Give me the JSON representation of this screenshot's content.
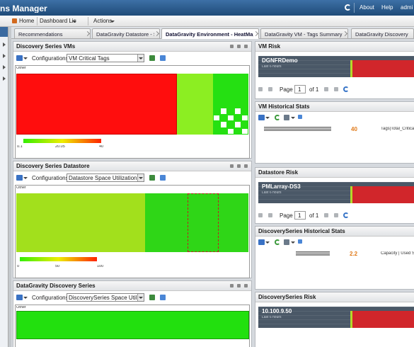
{
  "header": {
    "title": "ns Manager",
    "links": [
      "About",
      "Help",
      "admi"
    ]
  },
  "toolbar": {
    "home": "Home",
    "dashboard_list": "Dashboard List",
    "actions": "Actions"
  },
  "tabs": [
    "Recommendations",
    "DataGravity Datastore - Summary",
    "DataGravity Environment - HeatMaps",
    "DataGravity VM - Tags Summary",
    "DataGravity Discovery Seri"
  ],
  "left_panels": [
    {
      "title": "Discovery Series VMs",
      "config_label": "Configurations:",
      "config_value": "VM Critical Tags",
      "heatmap_label": "Other",
      "legend_ticks": [
        "0.1",
        "20.05",
        "40"
      ]
    },
    {
      "title": "Discovery Series Datastore",
      "config_label": "Configurations:",
      "config_value": "Datastore Space Utilization",
      "heatmap_label": "Other",
      "legend_ticks": [
        "0",
        "50",
        "100"
      ]
    },
    {
      "title": "DataGravity Discovery Series",
      "config_label": "Configurations:",
      "config_value": "DiscoverySeries Space Utilizati",
      "heatmap_label": "Other"
    }
  ],
  "right_panels": [
    {
      "title": "VM Risk",
      "chart": {
        "name": "DGNFRDemo",
        "period": "Last 6 hours"
      },
      "pager": {
        "label": "Page",
        "page": "1",
        "total": "of 1"
      }
    },
    {
      "title": "VM Historical Stats",
      "stat": {
        "value": "40",
        "metric": "Tags|Total_Critical"
      }
    },
    {
      "title": "Datastore Risk",
      "chart": {
        "name": "PMLarray-DS3",
        "period": "Last 6 hours"
      },
      "pager": {
        "label": "Page",
        "page": "1",
        "total": "of 1"
      }
    },
    {
      "title": "DiscoverySeries Historical Stats",
      "stat": {
        "value": "2.2",
        "metric": "Capacity | Used Sp"
      }
    },
    {
      "title": "DiscoverySeries Risk",
      "chart": {
        "name": "10.100.9.50",
        "period": "Last 6 hours"
      }
    }
  ]
}
